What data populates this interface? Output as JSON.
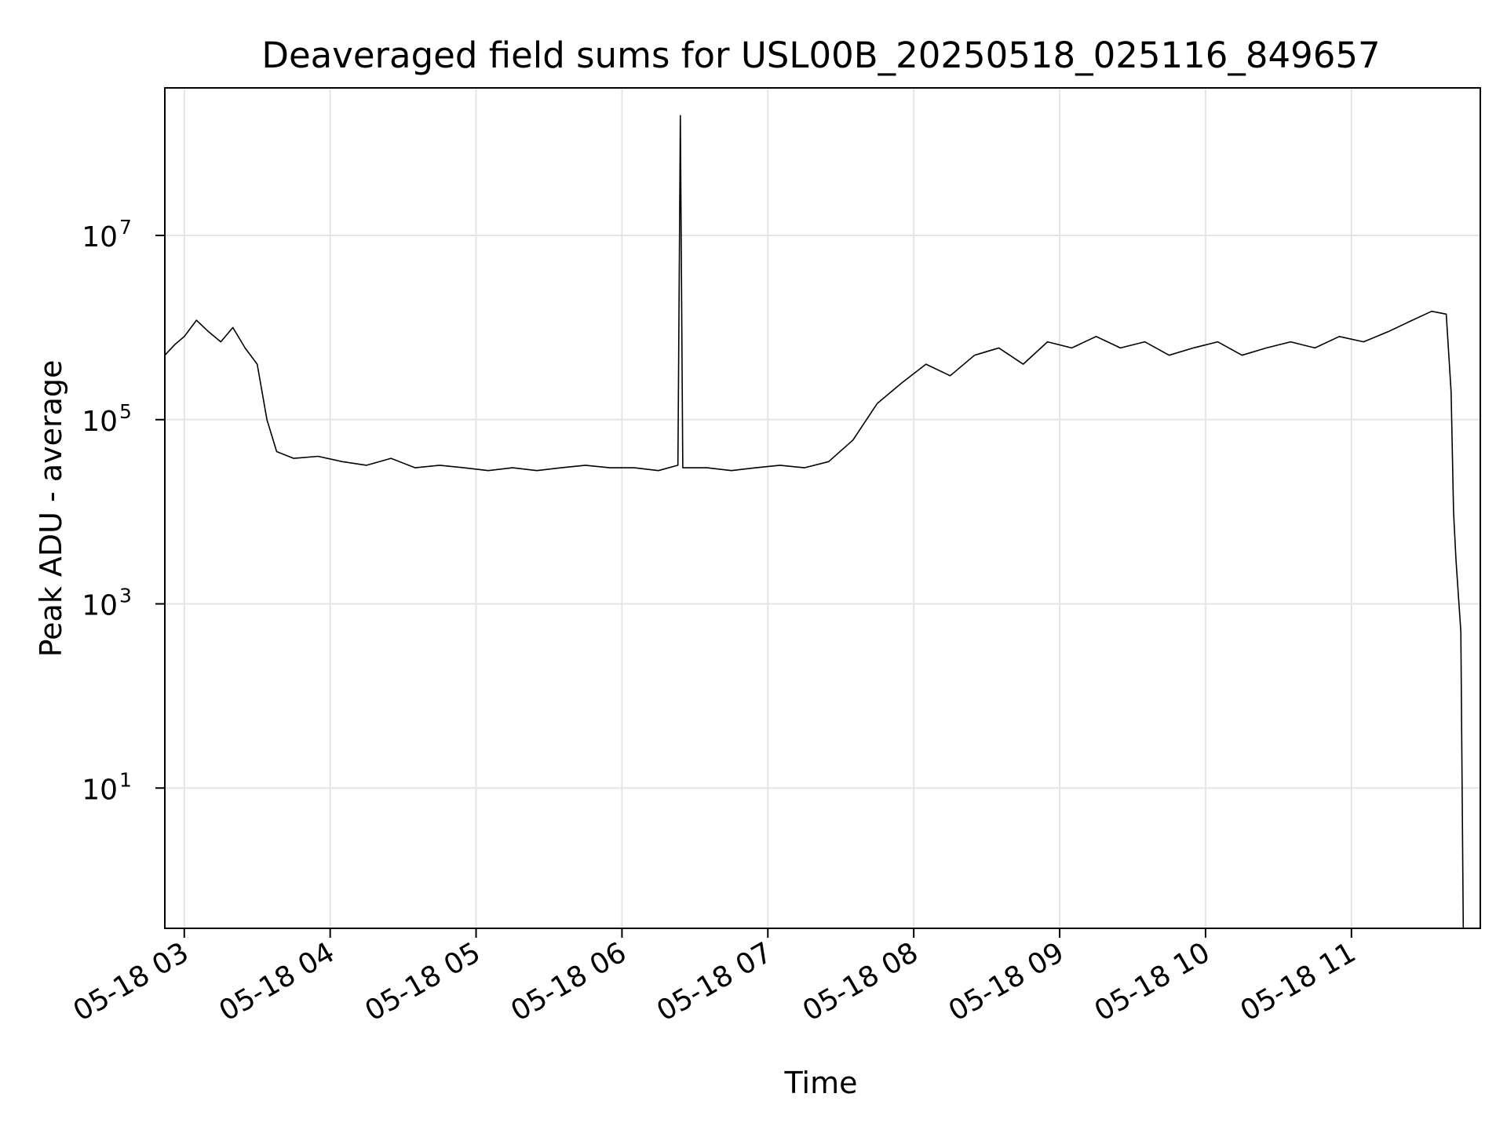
{
  "chart_data": {
    "type": "line",
    "title": "Deaveraged field sums for USL00B_20250518_025116_849657",
    "xlabel": "Time",
    "ylabel": "Peak ADU - average",
    "x_scale": "time",
    "y_scale": "log",
    "xlim": [
      "2025-05-18 02:52",
      "2025-05-18 11:53"
    ],
    "ylim": [
      0.3,
      400000000
    ],
    "x_ticks": [
      "05-18 03",
      "05-18 04",
      "05-18 05",
      "05-18 06",
      "05-18 07",
      "05-18 08",
      "05-18 09",
      "05-18 10",
      "05-18 11"
    ],
    "y_ticks": [
      {
        "base": "10",
        "exp": "1"
      },
      {
        "base": "10",
        "exp": "3"
      },
      {
        "base": "10",
        "exp": "5"
      },
      {
        "base": "10",
        "exp": "7"
      }
    ],
    "grid": true,
    "line_color": "#000000",
    "grid_color": "#e5e5e5",
    "series": [
      {
        "values": [
          [
            "02:52",
            500000
          ],
          [
            "02:56",
            650000
          ],
          [
            "03:00",
            800000
          ],
          [
            "03:05",
            1200000
          ],
          [
            "03:10",
            900000
          ],
          [
            "03:15",
            700000
          ],
          [
            "03:20",
            1000000
          ],
          [
            "03:25",
            600000
          ],
          [
            "03:30",
            400000
          ],
          [
            "03:34",
            100000
          ],
          [
            "03:38",
            45000
          ],
          [
            "03:45",
            38000
          ],
          [
            "03:55",
            40000
          ],
          [
            "04:05",
            35000
          ],
          [
            "04:15",
            32000
          ],
          [
            "04:25",
            38000
          ],
          [
            "04:35",
            30000
          ],
          [
            "04:45",
            32000
          ],
          [
            "04:55",
            30000
          ],
          [
            "05:05",
            28000
          ],
          [
            "05:15",
            30000
          ],
          [
            "05:25",
            28000
          ],
          [
            "05:35",
            30000
          ],
          [
            "05:45",
            32000
          ],
          [
            "05:55",
            30000
          ],
          [
            "06:05",
            30000
          ],
          [
            "06:15",
            28000
          ],
          [
            "06:23",
            32000
          ],
          [
            "06:24",
            200000000
          ],
          [
            "06:25",
            30000
          ],
          [
            "06:35",
            30000
          ],
          [
            "06:45",
            28000
          ],
          [
            "06:55",
            30000
          ],
          [
            "07:05",
            32000
          ],
          [
            "07:15",
            30000
          ],
          [
            "07:25",
            35000
          ],
          [
            "07:35",
            60000
          ],
          [
            "07:45",
            150000
          ],
          [
            "07:55",
            250000
          ],
          [
            "08:05",
            400000
          ],
          [
            "08:15",
            300000
          ],
          [
            "08:25",
            500000
          ],
          [
            "08:35",
            600000
          ],
          [
            "08:45",
            400000
          ],
          [
            "08:55",
            700000
          ],
          [
            "09:05",
            600000
          ],
          [
            "09:15",
            800000
          ],
          [
            "09:25",
            600000
          ],
          [
            "09:35",
            700000
          ],
          [
            "09:45",
            500000
          ],
          [
            "09:55",
            600000
          ],
          [
            "10:05",
            700000
          ],
          [
            "10:15",
            500000
          ],
          [
            "10:25",
            600000
          ],
          [
            "10:35",
            700000
          ],
          [
            "10:45",
            600000
          ],
          [
            "10:55",
            800000
          ],
          [
            "11:05",
            700000
          ],
          [
            "11:15",
            900000
          ],
          [
            "11:25",
            1200000
          ],
          [
            "11:33",
            1500000
          ],
          [
            "11:39",
            1400000
          ],
          [
            "11:41",
            200000
          ],
          [
            "11:42",
            10000
          ],
          [
            "11:43",
            3000
          ],
          [
            "11:45",
            500
          ],
          [
            "11:46",
            0.3
          ]
        ]
      }
    ]
  }
}
